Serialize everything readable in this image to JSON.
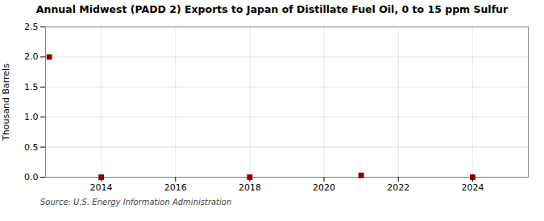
{
  "chart_data": {
    "type": "scatter",
    "title": "Annual Midwest (PADD 2) Exports to Japan of Distillate Fuel Oil, 0 to 15 ppm Sulfur",
    "ylabel": "Thousand Barrels",
    "annotations": [
      "Source: U.S. Energy Information Administration"
    ],
    "x": [
      2012.6,
      2014,
      2018,
      2021,
      2024
    ],
    "values": [
      2.0,
      0.0,
      0.0,
      0.03,
      0.0
    ],
    "color": "#8b0000",
    "marker": "square",
    "xlim": [
      2012.5,
      2025.5
    ],
    "ylim": [
      0.0,
      2.5
    ],
    "xticks": [
      2014,
      2016,
      2018,
      2020,
      2022,
      2024
    ],
    "yticks": [
      {
        "value": 0.0,
        "label": "0.0"
      },
      0.5,
      {
        "value": 1.0,
        "label": "1.0"
      },
      1.5,
      {
        "value": 2.0,
        "label": "2.0"
      },
      2.5
    ],
    "grid": true
  }
}
